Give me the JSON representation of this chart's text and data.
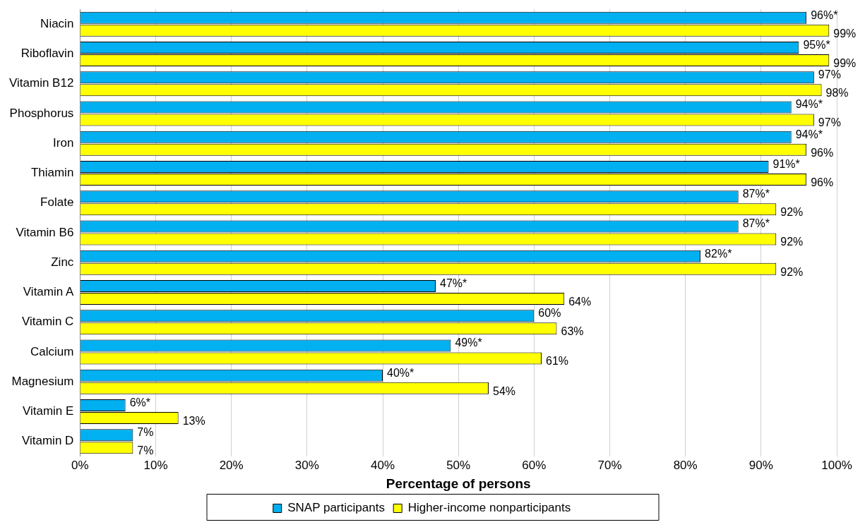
{
  "chart_data": {
    "type": "bar",
    "orientation": "horizontal",
    "xlabel": "Percentage of persons",
    "categories": [
      "Niacin",
      "Riboflavin",
      "Vitamin B12",
      "Phosphorus",
      "Iron",
      "Thiamin",
      "Folate",
      "Vitamin B6",
      "Zinc",
      "Vitamin A",
      "Vitamin C",
      "Calcium",
      "Magnesium",
      "Vitamin E",
      "Vitamin D"
    ],
    "series": [
      {
        "name": "SNAP participants",
        "color": "#00b0f0",
        "values": [
          96,
          95,
          97,
          94,
          94,
          91,
          87,
          87,
          82,
          47,
          60,
          49,
          40,
          6,
          7
        ],
        "value_labels": [
          "96%*",
          "95%*",
          "97%",
          "94%*",
          "94%*",
          "91%*",
          "87%*",
          "87%*",
          "82%*",
          "47%*",
          "60%",
          "49%*",
          "40%*",
          "6%*",
          "7%"
        ]
      },
      {
        "name": "Higher-income nonparticipants",
        "color": "#ffff00",
        "values": [
          99,
          99,
          98,
          97,
          96,
          96,
          92,
          92,
          92,
          64,
          63,
          61,
          54,
          13,
          7
        ],
        "value_labels": [
          "99%",
          "99%",
          "98%",
          "97%",
          "96%",
          "96%",
          "92%",
          "92%",
          "92%",
          "64%",
          "63%",
          "61%",
          "54%",
          "13%",
          "7%"
        ]
      }
    ],
    "xlim": [
      0,
      100
    ],
    "xticks": [
      {
        "value": 0,
        "label": "0%"
      },
      {
        "value": 10,
        "label": "10%"
      },
      {
        "value": 20,
        "label": "20%"
      },
      {
        "value": 30,
        "label": "30%"
      },
      {
        "value": 40,
        "label": "40%"
      },
      {
        "value": 50,
        "label": "50%"
      },
      {
        "value": 60,
        "label": "60%"
      },
      {
        "value": 70,
        "label": "70%"
      },
      {
        "value": 80,
        "label": "80%"
      },
      {
        "value": 90,
        "label": "90%"
      },
      {
        "value": 100,
        "label": "100%"
      }
    ],
    "grid": "x",
    "legend": "bottom"
  }
}
